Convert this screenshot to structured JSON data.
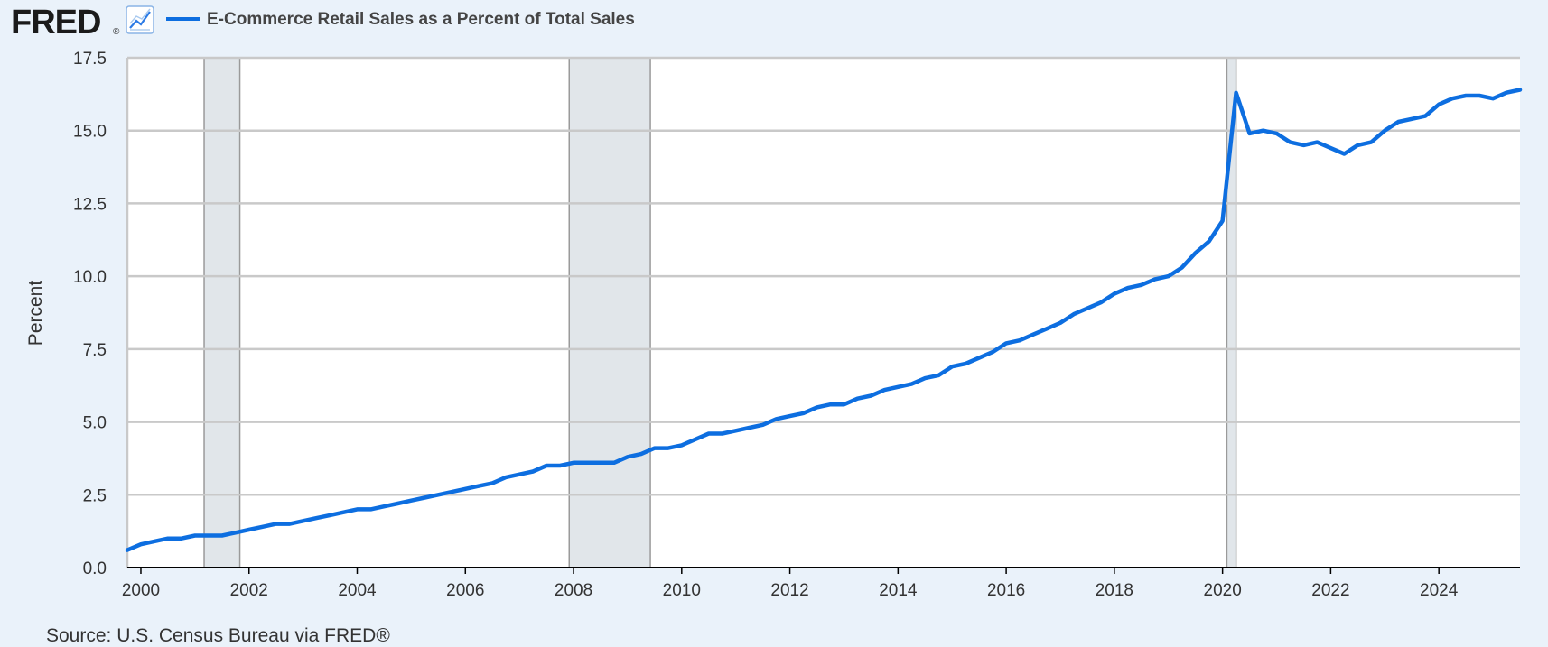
{
  "header": {
    "logo_text": "FRED",
    "logo_registered": "®",
    "chart_icon": "line-chart-icon",
    "legend_label": "E-Commerce Retail Sales as a Percent of Total Sales"
  },
  "source": "Source: U.S. Census Bureau via FRED®",
  "colors": {
    "background": "#eaf2fa",
    "plot_background": "#ffffff",
    "series": "#0d6ee0",
    "grid": "#c9c9c9",
    "recession": "#e1e6ea",
    "axis": "#000000"
  },
  "chart_data": {
    "type": "line",
    "title": "E-Commerce Retail Sales as a Percent of Total Sales",
    "ylabel": "Percent",
    "xlabel": "",
    "xlim": [
      1999.75,
      2025.5
    ],
    "ylim": [
      0,
      17.5
    ],
    "yticks": [
      "0.0",
      "2.5",
      "5.0",
      "7.5",
      "10.0",
      "12.5",
      "15.0",
      "17.5"
    ],
    "xticks": [
      "2000",
      "2002",
      "2004",
      "2006",
      "2008",
      "2010",
      "2012",
      "2014",
      "2016",
      "2018",
      "2020",
      "2022",
      "2024"
    ],
    "grid": true,
    "recessions": [
      [
        2001.17,
        2001.83
      ],
      [
        2007.92,
        2009.42
      ],
      [
        2020.08,
        2020.25
      ]
    ],
    "series": [
      {
        "name": "E-Commerce Retail Sales as a Percent of Total Sales",
        "x": [
          1999.75,
          2000.0,
          2000.25,
          2000.5,
          2000.75,
          2001.0,
          2001.25,
          2001.5,
          2001.75,
          2002.0,
          2002.25,
          2002.5,
          2002.75,
          2003.0,
          2003.25,
          2003.5,
          2003.75,
          2004.0,
          2004.25,
          2004.5,
          2004.75,
          2005.0,
          2005.25,
          2005.5,
          2005.75,
          2006.0,
          2006.25,
          2006.5,
          2006.75,
          2007.0,
          2007.25,
          2007.5,
          2007.75,
          2008.0,
          2008.25,
          2008.5,
          2008.75,
          2009.0,
          2009.25,
          2009.5,
          2009.75,
          2010.0,
          2010.25,
          2010.5,
          2010.75,
          2011.0,
          2011.25,
          2011.5,
          2011.75,
          2012.0,
          2012.25,
          2012.5,
          2012.75,
          2013.0,
          2013.25,
          2013.5,
          2013.75,
          2014.0,
          2014.25,
          2014.5,
          2014.75,
          2015.0,
          2015.25,
          2015.5,
          2015.75,
          2016.0,
          2016.25,
          2016.5,
          2016.75,
          2017.0,
          2017.25,
          2017.5,
          2017.75,
          2018.0,
          2018.25,
          2018.5,
          2018.75,
          2019.0,
          2019.25,
          2019.5,
          2019.75,
          2020.0,
          2020.25,
          2020.5,
          2020.75,
          2021.0,
          2021.25,
          2021.5,
          2021.75,
          2022.0,
          2022.25,
          2022.5,
          2022.75,
          2023.0,
          2023.25,
          2023.5,
          2023.75,
          2024.0,
          2024.25,
          2024.5,
          2024.75,
          2025.0,
          2025.25,
          2025.5
        ],
        "values": [
          0.6,
          0.8,
          0.9,
          1.0,
          1.0,
          1.1,
          1.1,
          1.1,
          1.2,
          1.3,
          1.4,
          1.5,
          1.5,
          1.6,
          1.7,
          1.8,
          1.9,
          2.0,
          2.0,
          2.1,
          2.2,
          2.3,
          2.4,
          2.5,
          2.6,
          2.7,
          2.8,
          2.9,
          3.1,
          3.2,
          3.3,
          3.5,
          3.5,
          3.6,
          3.6,
          3.6,
          3.6,
          3.8,
          3.9,
          4.1,
          4.1,
          4.2,
          4.4,
          4.6,
          4.6,
          4.7,
          4.8,
          4.9,
          5.1,
          5.2,
          5.3,
          5.5,
          5.6,
          5.6,
          5.8,
          5.9,
          6.1,
          6.2,
          6.3,
          6.5,
          6.6,
          6.9,
          7.0,
          7.2,
          7.4,
          7.7,
          7.8,
          8.0,
          8.2,
          8.4,
          8.7,
          8.9,
          9.1,
          9.4,
          9.6,
          9.7,
          9.9,
          10.0,
          10.3,
          10.8,
          11.2,
          11.9,
          16.3,
          14.9,
          15.0,
          14.9,
          14.6,
          14.5,
          14.6,
          14.4,
          14.2,
          14.5,
          14.6,
          15.0,
          15.3,
          15.4,
          15.5,
          15.9,
          16.1,
          16.2,
          16.2,
          16.1,
          16.3,
          16.4
        ]
      }
    ]
  }
}
